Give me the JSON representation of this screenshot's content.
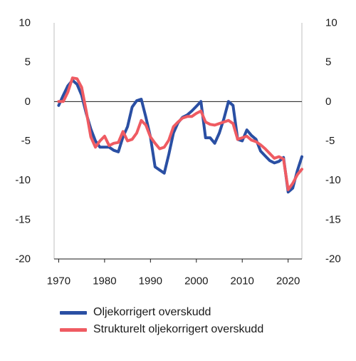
{
  "chart_data": {
    "type": "line",
    "title": "",
    "xlabel": "",
    "ylabel": "",
    "xlim": [
      1969,
      2023
    ],
    "ylim": [
      -20,
      10
    ],
    "xticks": [
      1970,
      1980,
      1990,
      2000,
      2010,
      2020
    ],
    "yticks": [
      10,
      5,
      0,
      -5,
      -10,
      -15,
      -20
    ],
    "grid": false,
    "zero_line": true,
    "legend_position": "bottom",
    "series": [
      {
        "name": "Oljekorrigert overskudd",
        "color": "#2a4fa3",
        "x": [
          1970,
          1971,
          1972,
          1973,
          1974,
          1975,
          1976,
          1977,
          1978,
          1979,
          1980,
          1981,
          1982,
          1983,
          1984,
          1985,
          1986,
          1987,
          1988,
          1989,
          1990,
          1991,
          1992,
          1993,
          1994,
          1995,
          1996,
          1997,
          1998,
          1999,
          2000,
          2001,
          2002,
          2003,
          2004,
          2005,
          2006,
          2007,
          2008,
          2009,
          2010,
          2011,
          2012,
          2013,
          2014,
          2015,
          2016,
          2017,
          2018,
          2019,
          2020,
          2021,
          2022,
          2023
        ],
        "values": [
          -0.5,
          0.8,
          2.0,
          2.7,
          2.2,
          0.8,
          -1.5,
          -3.5,
          -5.0,
          -5.8,
          -5.8,
          -5.8,
          -6.2,
          -6.4,
          -4.5,
          -3.2,
          -0.7,
          0.1,
          0.3,
          -2.0,
          -4.5,
          -8.3,
          -8.7,
          -9.1,
          -6.7,
          -4.0,
          -2.7,
          -2.0,
          -1.7,
          -1.2,
          -0.6,
          0.0,
          -4.6,
          -4.6,
          -5.3,
          -4.0,
          -2.2,
          0.0,
          -0.5,
          -4.8,
          -5.0,
          -3.6,
          -4.3,
          -4.8,
          -6.3,
          -6.9,
          -7.5,
          -7.8,
          -7.6,
          -7.1,
          -11.5,
          -11.0,
          -8.8,
          -7.0
        ]
      },
      {
        "name": "Strukturelt oljekorrigert overskudd",
        "color": "#ef5b62",
        "x": [
          1970,
          1971,
          1972,
          1973,
          1974,
          1975,
          1976,
          1977,
          1978,
          1979,
          1980,
          1981,
          1982,
          1983,
          1984,
          1985,
          1986,
          1987,
          1988,
          1989,
          1990,
          1991,
          1992,
          1993,
          1994,
          1995,
          1996,
          1997,
          1998,
          1999,
          2000,
          2001,
          2002,
          2003,
          2004,
          2005,
          2006,
          2007,
          2008,
          2009,
          2010,
          2011,
          2012,
          2013,
          2014,
          2015,
          2016,
          2017,
          2018,
          2019,
          2020,
          2021,
          2022,
          2023
        ],
        "values": [
          0.0,
          0.0,
          1.2,
          3.0,
          2.9,
          1.8,
          -1.2,
          -4.5,
          -5.8,
          -5.0,
          -4.4,
          -5.6,
          -5.3,
          -5.2,
          -3.8,
          -5.0,
          -4.8,
          -4.0,
          -2.4,
          -3.0,
          -4.5,
          -5.3,
          -6.0,
          -5.8,
          -4.9,
          -3.2,
          -2.6,
          -2.1,
          -1.9,
          -1.9,
          -1.5,
          -1.2,
          -2.6,
          -2.9,
          -3.0,
          -2.8,
          -2.6,
          -2.4,
          -2.8,
          -4.8,
          -4.6,
          -4.4,
          -4.9,
          -5.1,
          -5.5,
          -6.0,
          -6.6,
          -7.2,
          -7.0,
          -7.3,
          -11.2,
          -10.4,
          -9.3,
          -8.6
        ]
      }
    ]
  }
}
